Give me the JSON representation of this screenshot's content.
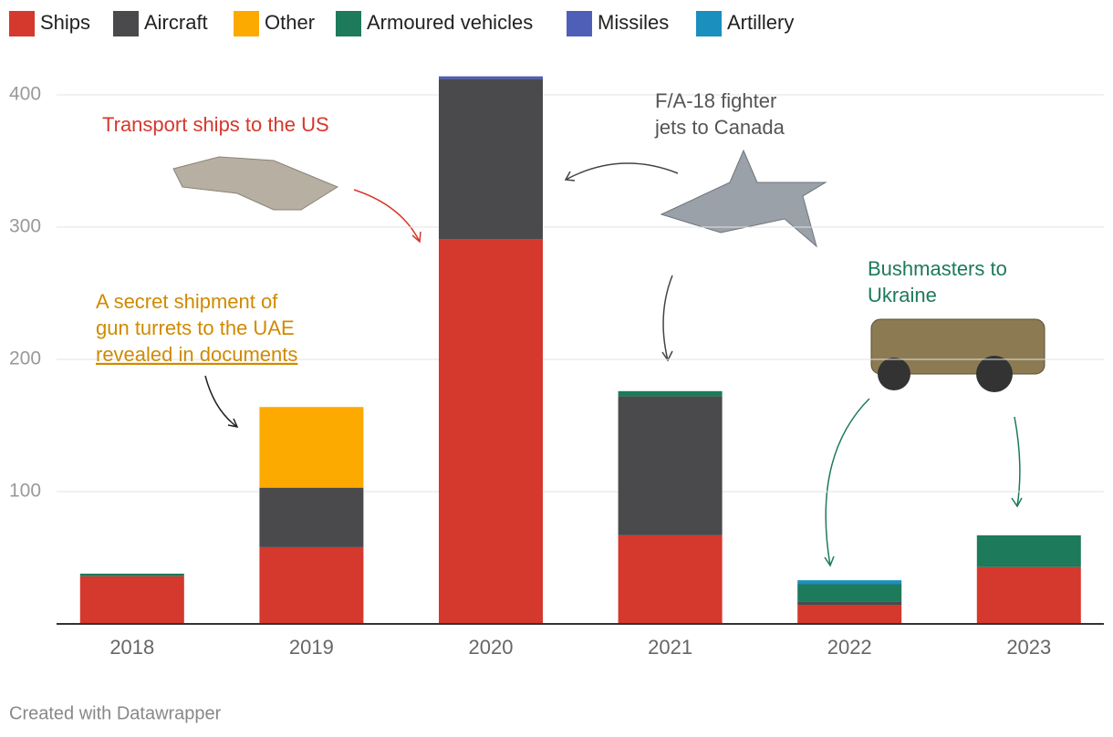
{
  "chart_data": {
    "type": "stacked_bar",
    "categories": [
      "2018",
      "2019",
      "2020",
      "2021",
      "2022",
      "2023"
    ],
    "series": [
      {
        "name": "Ships",
        "color": "#d5382c",
        "values": [
          36,
          58,
          291,
          67,
          14,
          43
        ]
      },
      {
        "name": "Aircraft",
        "color": "#4a4a4c",
        "values": [
          0,
          45,
          121,
          105,
          3,
          0
        ]
      },
      {
        "name": "Other",
        "color": "#fdaa00",
        "values": [
          0,
          61,
          0,
          0,
          0,
          0
        ]
      },
      {
        "name": "Armoured vehicles",
        "color": "#1d7a5b",
        "values": [
          2,
          0,
          0,
          4,
          13,
          24
        ]
      },
      {
        "name": "Missiles",
        "color": "#4f5fb8",
        "values": [
          0,
          0,
          2,
          0,
          0,
          0
        ]
      },
      {
        "name": "Artillery",
        "color": "#1b8fbd",
        "values": [
          0,
          0,
          0,
          0,
          3,
          0
        ]
      }
    ],
    "ylim": [
      0,
      420
    ],
    "yticks": [
      100,
      200,
      300,
      400
    ],
    "grid": true,
    "annotations": [
      {
        "lines": [
          "Transport ships to the US"
        ],
        "color": "#d5382c"
      },
      {
        "lines": [
          "F/A-18 fighter",
          "jets to Canada"
        ],
        "color": "#555555"
      },
      {
        "lines": [
          "Bushmasters to",
          "Ukraine"
        ],
        "color": "#1d7a5b"
      },
      {
        "lines": [
          "A secret shipment of",
          "gun turrets to the UAE",
          "revealed in documents"
        ],
        "color": "#d08a00"
      }
    ],
    "footer": "Created with Datawrapper"
  }
}
